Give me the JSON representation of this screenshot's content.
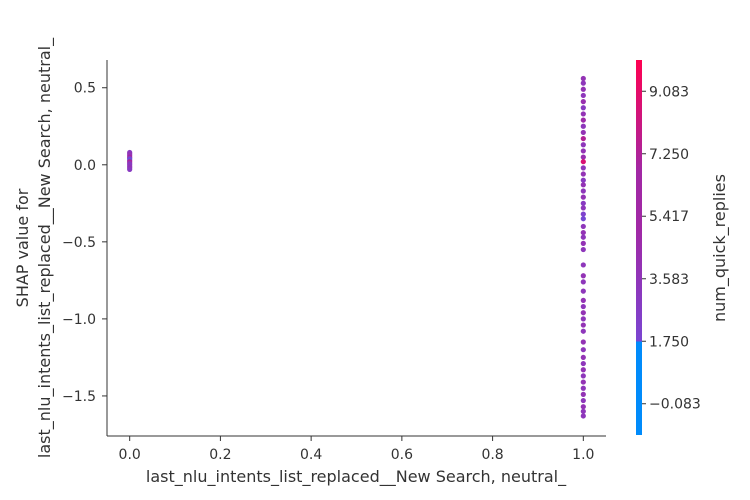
{
  "chart_data": {
    "type": "scatter",
    "xlabel": "last_nlu_intents_list_replaced__New Search, neutral_",
    "ylabel": "SHAP value for\nlast_nlu_intents_list_replaced__New Search, neutral_",
    "colorbar_label": "num_quick_replies",
    "xlim": [
      -0.05,
      1.05
    ],
    "ylim": [
      -1.76,
      0.68
    ],
    "x_ticks": [
      0.0,
      0.2,
      0.4,
      0.6,
      0.8,
      1.0
    ],
    "x_tick_labels": [
      "0.0",
      "0.2",
      "0.4",
      "0.6",
      "0.8",
      "1.0"
    ],
    "y_ticks": [
      0.5,
      0.0,
      -0.5,
      -1.0,
      -1.5
    ],
    "y_tick_labels": [
      "0.5",
      "0.0",
      "−0.5",
      "−1.0",
      "−1.5"
    ],
    "colorbar": {
      "range": [
        -1.0,
        10.0
      ],
      "ticks": [
        9.083,
        7.25,
        5.417,
        3.583,
        1.75,
        -0.083
      ],
      "tick_labels": [
        "9.083",
        "7.250",
        "5.417",
        "3.583",
        "1.750",
        "−0.083"
      ],
      "colors": [
        "#008bfb",
        "#7a45d1",
        "#a128a5",
        "#ff0051"
      ]
    },
    "grid": false,
    "legend": "none",
    "point_color_values": [
      {
        "x": 0.0,
        "y": 0.08,
        "c": 4.0
      },
      {
        "x": 0.0,
        "y": 0.07,
        "c": 5.0
      },
      {
        "x": 0.0,
        "y": 0.06,
        "c": 4.5
      },
      {
        "x": 0.0,
        "y": 0.05,
        "c": 6.5
      },
      {
        "x": 0.0,
        "y": 0.04,
        "c": 3.0
      },
      {
        "x": 0.0,
        "y": 0.03,
        "c": 2.0
      },
      {
        "x": 0.0,
        "y": 0.02,
        "c": 7.0
      },
      {
        "x": 0.0,
        "y": 0.01,
        "c": 5.0
      },
      {
        "x": 0.0,
        "y": 0.0,
        "c": 4.0
      },
      {
        "x": 0.0,
        "y": -0.01,
        "c": 4.5
      },
      {
        "x": 0.0,
        "y": -0.02,
        "c": 5.0
      },
      {
        "x": 0.0,
        "y": -0.03,
        "c": 4.0
      },
      {
        "x": 1.0,
        "y": 0.56,
        "c": 5.0
      },
      {
        "x": 1.0,
        "y": 0.53,
        "c": 4.5
      },
      {
        "x": 1.0,
        "y": 0.49,
        "c": 5.0
      },
      {
        "x": 1.0,
        "y": 0.45,
        "c": 4.5
      },
      {
        "x": 1.0,
        "y": 0.41,
        "c": 5.5
      },
      {
        "x": 1.0,
        "y": 0.37,
        "c": 4.0
      },
      {
        "x": 1.0,
        "y": 0.33,
        "c": 5.0
      },
      {
        "x": 1.0,
        "y": 0.29,
        "c": 6.0
      },
      {
        "x": 1.0,
        "y": 0.25,
        "c": 4.5
      },
      {
        "x": 1.0,
        "y": 0.21,
        "c": 5.0
      },
      {
        "x": 1.0,
        "y": 0.17,
        "c": 7.0
      },
      {
        "x": 1.0,
        "y": 0.13,
        "c": 4.5
      },
      {
        "x": 1.0,
        "y": 0.09,
        "c": 5.0
      },
      {
        "x": 1.0,
        "y": 0.05,
        "c": 5.5
      },
      {
        "x": 1.0,
        "y": 0.02,
        "c": 8.5
      },
      {
        "x": 1.0,
        "y": -0.02,
        "c": 4.5
      },
      {
        "x": 1.0,
        "y": -0.06,
        "c": 5.0
      },
      {
        "x": 1.0,
        "y": -0.1,
        "c": 4.0
      },
      {
        "x": 1.0,
        "y": -0.13,
        "c": 5.0
      },
      {
        "x": 1.0,
        "y": -0.17,
        "c": 4.5
      },
      {
        "x": 1.0,
        "y": -0.21,
        "c": 5.0
      },
      {
        "x": 1.0,
        "y": -0.25,
        "c": 4.0
      },
      {
        "x": 1.0,
        "y": -0.28,
        "c": 4.5
      },
      {
        "x": 1.0,
        "y": -0.32,
        "c": 3.0
      },
      {
        "x": 1.0,
        "y": -0.35,
        "c": 2.5
      },
      {
        "x": 1.0,
        "y": -0.4,
        "c": 4.5
      },
      {
        "x": 1.0,
        "y": -0.44,
        "c": 5.0
      },
      {
        "x": 1.0,
        "y": -0.47,
        "c": 4.5
      },
      {
        "x": 1.0,
        "y": -0.51,
        "c": 5.0
      },
      {
        "x": 1.0,
        "y": -0.55,
        "c": 4.5
      },
      {
        "x": 1.0,
        "y": -0.65,
        "c": 4.5
      },
      {
        "x": 1.0,
        "y": -0.72,
        "c": 5.0
      },
      {
        "x": 1.0,
        "y": -0.76,
        "c": 4.5
      },
      {
        "x": 1.0,
        "y": -0.82,
        "c": 4.5
      },
      {
        "x": 1.0,
        "y": -0.88,
        "c": 5.0
      },
      {
        "x": 1.0,
        "y": -0.92,
        "c": 4.5
      },
      {
        "x": 1.0,
        "y": -0.96,
        "c": 5.0
      },
      {
        "x": 1.0,
        "y": -1.0,
        "c": 4.5
      },
      {
        "x": 1.0,
        "y": -1.04,
        "c": 5.0
      },
      {
        "x": 1.0,
        "y": -1.08,
        "c": 4.5
      },
      {
        "x": 1.0,
        "y": -1.15,
        "c": 5.0
      },
      {
        "x": 1.0,
        "y": -1.2,
        "c": 4.5
      },
      {
        "x": 1.0,
        "y": -1.25,
        "c": 5.0
      },
      {
        "x": 1.0,
        "y": -1.29,
        "c": 4.5
      },
      {
        "x": 1.0,
        "y": -1.33,
        "c": 5.0
      },
      {
        "x": 1.0,
        "y": -1.37,
        "c": 4.5
      },
      {
        "x": 1.0,
        "y": -1.41,
        "c": 5.0
      },
      {
        "x": 1.0,
        "y": -1.45,
        "c": 4.5
      },
      {
        "x": 1.0,
        "y": -1.49,
        "c": 5.0
      },
      {
        "x": 1.0,
        "y": -1.53,
        "c": 4.5
      },
      {
        "x": 1.0,
        "y": -1.57,
        "c": 5.0
      },
      {
        "x": 1.0,
        "y": -1.6,
        "c": 4.5
      },
      {
        "x": 1.0,
        "y": -1.63,
        "c": 4.5
      }
    ]
  }
}
